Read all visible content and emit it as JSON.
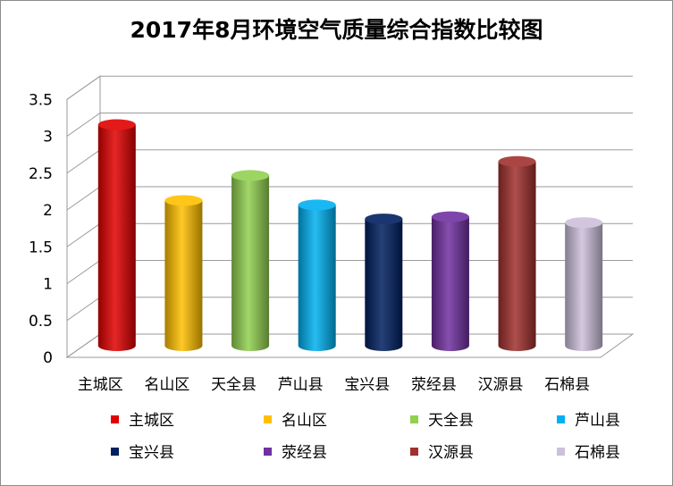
{
  "chart_data": {
    "type": "bar",
    "title": "2017年8月环境空气质量综合指数比较图",
    "xlabel": "",
    "ylabel": "",
    "ylim": [
      0,
      3.5
    ],
    "yticks": [
      "0",
      "0.5",
      "1",
      "1.5",
      "2",
      "2.5",
      "3",
      "3.5"
    ],
    "ytick_values": [
      0,
      0.5,
      1,
      1.5,
      2,
      2.5,
      3,
      3.5
    ],
    "grid": true,
    "legend_position": "bottom",
    "categories": [
      "主城区",
      "名山区",
      "天全县",
      "芦山县",
      "宝兴县",
      "荥经县",
      "汉源县",
      "石棉县"
    ],
    "values": [
      3.0,
      1.97,
      2.31,
      1.91,
      1.72,
      1.75,
      2.5,
      1.67
    ],
    "colors": [
      "#e00000",
      "#ffc000",
      "#92d050",
      "#00b0f0",
      "#002060",
      "#7030a0",
      "#a0302e",
      "#ccc0da"
    ],
    "legend": [
      "主城区",
      "名山区",
      "天全县",
      "芦山县",
      "宝兴县",
      "荥经县",
      "汉源县",
      "石棉县"
    ]
  }
}
